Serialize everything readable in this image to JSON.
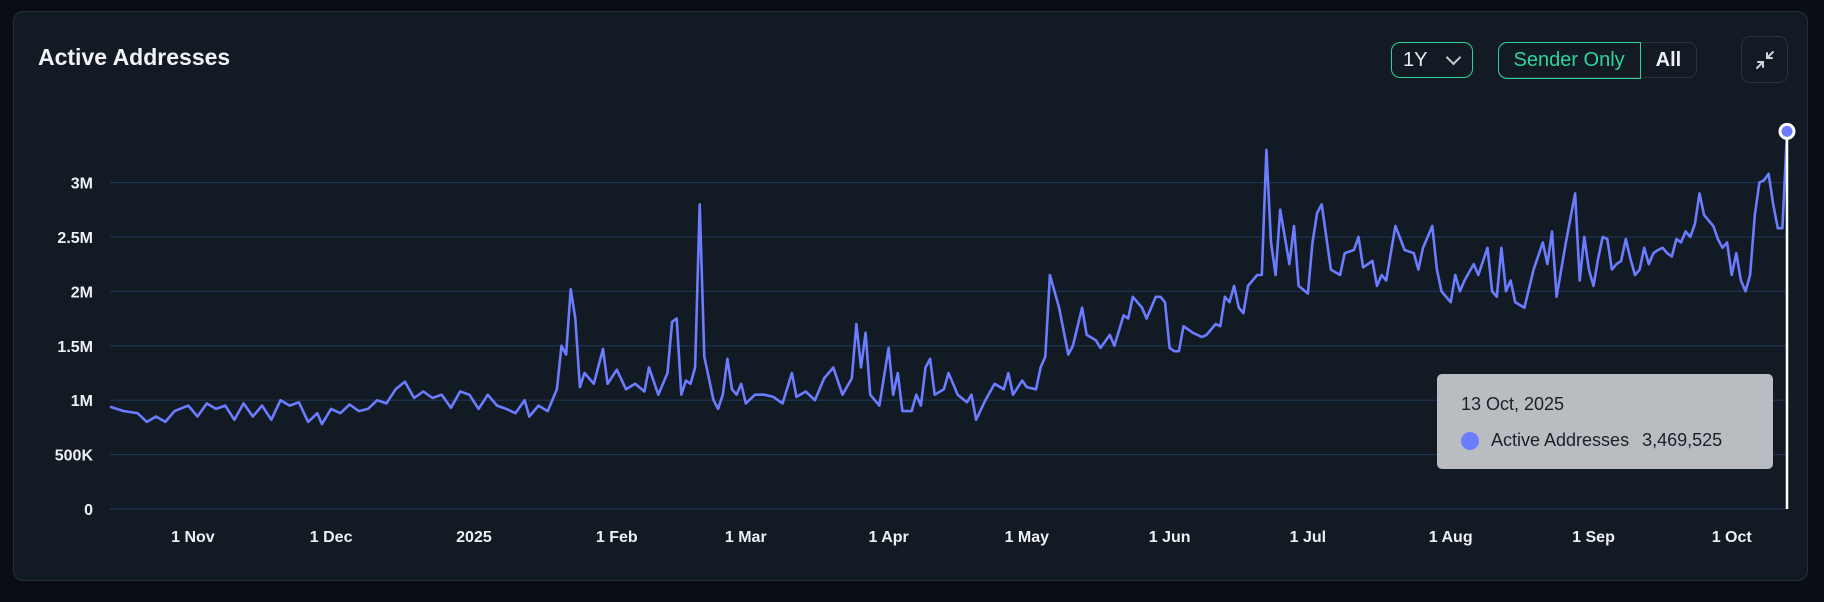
{
  "header": {
    "title": "Active Addresses",
    "range_label": "1Y",
    "toggle": {
      "active": "Sender Only",
      "inactive": "All"
    },
    "collapse_icon": "compress-icon"
  },
  "colors": {
    "line": "#6b7cff",
    "accent": "#2fd49a",
    "grid": "#1d3550",
    "card": "#121a24"
  },
  "tooltip": {
    "date": "13 Oct, 2025",
    "series": "Active Addresses",
    "value": "3,469,525"
  },
  "chart_data": {
    "type": "line",
    "title": "",
    "xlabel": "",
    "ylabel": "",
    "grid": true,
    "legend": "none",
    "yticks": [
      "0",
      "500K",
      "1M",
      "1.5M",
      "2M",
      "2.5M",
      "3M"
    ],
    "ytick_values": [
      0,
      500000,
      1000000,
      1500000,
      2000000,
      2500000,
      3000000
    ],
    "xticks": [
      "1 Nov",
      "1 Dec",
      "2025",
      "1 Feb",
      "1 Mar",
      "1 Apr",
      "1 May",
      "1 Jun",
      "1 Jul",
      "1 Aug",
      "1 Sep",
      "1 Oct"
    ],
    "xtick_dates": [
      "2024-11-01",
      "2024-12-01",
      "2025-01-01",
      "2025-02-01",
      "2025-03-01",
      "2025-04-01",
      "2025-05-01",
      "2025-06-01",
      "2025-07-01",
      "2025-08-01",
      "2025-09-01",
      "2025-10-01"
    ],
    "xlim": [
      "2024-10-14",
      "2025-10-13"
    ],
    "ylim": [
      0,
      3500000
    ],
    "series": [
      {
        "name": "Active Addresses",
        "points": [
          [
            "2024-10-14",
            940000
          ],
          [
            "2024-10-17",
            900000
          ],
          [
            "2024-10-20",
            880000
          ],
          [
            "2024-10-22",
            800000
          ],
          [
            "2024-10-24",
            850000
          ],
          [
            "2024-10-26",
            800000
          ],
          [
            "2024-10-28",
            900000
          ],
          [
            "2024-10-31",
            950000
          ],
          [
            "2024-11-02",
            850000
          ],
          [
            "2024-11-04",
            970000
          ],
          [
            "2024-11-06",
            920000
          ],
          [
            "2024-11-08",
            950000
          ],
          [
            "2024-11-10",
            820000
          ],
          [
            "2024-11-12",
            970000
          ],
          [
            "2024-11-14",
            850000
          ],
          [
            "2024-11-16",
            950000
          ],
          [
            "2024-11-18",
            820000
          ],
          [
            "2024-11-20",
            1000000
          ],
          [
            "2024-11-22",
            950000
          ],
          [
            "2024-11-24",
            980000
          ],
          [
            "2024-11-26",
            800000
          ],
          [
            "2024-11-28",
            880000
          ],
          [
            "2024-11-29",
            780000
          ],
          [
            "2024-12-01",
            920000
          ],
          [
            "2024-12-03",
            880000
          ],
          [
            "2024-12-05",
            960000
          ],
          [
            "2024-12-07",
            900000
          ],
          [
            "2024-12-09",
            920000
          ],
          [
            "2024-12-11",
            1000000
          ],
          [
            "2024-12-13",
            970000
          ],
          [
            "2024-12-15",
            1100000
          ],
          [
            "2024-12-17",
            1170000
          ],
          [
            "2024-12-19",
            1020000
          ],
          [
            "2024-12-21",
            1080000
          ],
          [
            "2024-12-23",
            1020000
          ],
          [
            "2024-12-25",
            1050000
          ],
          [
            "2024-12-27",
            930000
          ],
          [
            "2024-12-29",
            1080000
          ],
          [
            "2024-12-31",
            1050000
          ],
          [
            "2025-01-02",
            920000
          ],
          [
            "2025-01-04",
            1050000
          ],
          [
            "2025-01-06",
            950000
          ],
          [
            "2025-01-08",
            920000
          ],
          [
            "2025-01-10",
            880000
          ],
          [
            "2025-01-12",
            1000000
          ],
          [
            "2025-01-13",
            850000
          ],
          [
            "2025-01-15",
            950000
          ],
          [
            "2025-01-17",
            900000
          ],
          [
            "2025-01-19",
            1100000
          ],
          [
            "2025-01-20",
            1500000
          ],
          [
            "2025-01-21",
            1420000
          ],
          [
            "2025-01-22",
            2020000
          ],
          [
            "2025-01-23",
            1750000
          ],
          [
            "2025-01-24",
            1120000
          ],
          [
            "2025-01-25",
            1250000
          ],
          [
            "2025-01-27",
            1150000
          ],
          [
            "2025-01-29",
            1470000
          ],
          [
            "2025-01-30",
            1150000
          ],
          [
            "2025-02-01",
            1280000
          ],
          [
            "2025-02-03",
            1100000
          ],
          [
            "2025-02-05",
            1150000
          ],
          [
            "2025-02-07",
            1080000
          ],
          [
            "2025-02-08",
            1300000
          ],
          [
            "2025-02-10",
            1050000
          ],
          [
            "2025-02-12",
            1250000
          ],
          [
            "2025-02-13",
            1720000
          ],
          [
            "2025-02-14",
            1750000
          ],
          [
            "2025-02-15",
            1050000
          ],
          [
            "2025-02-16",
            1180000
          ],
          [
            "2025-02-17",
            1150000
          ],
          [
            "2025-02-18",
            1300000
          ],
          [
            "2025-02-19",
            2800000
          ],
          [
            "2025-02-20",
            1400000
          ],
          [
            "2025-02-22",
            1000000
          ],
          [
            "2025-02-23",
            920000
          ],
          [
            "2025-02-24",
            1050000
          ],
          [
            "2025-02-25",
            1380000
          ],
          [
            "2025-02-26",
            1100000
          ],
          [
            "2025-02-27",
            1050000
          ],
          [
            "2025-02-28",
            1150000
          ],
          [
            "2025-03-01",
            970000
          ],
          [
            "2025-03-03",
            1050000
          ],
          [
            "2025-03-05",
            1050000
          ],
          [
            "2025-03-07",
            1030000
          ],
          [
            "2025-03-09",
            970000
          ],
          [
            "2025-03-11",
            1250000
          ],
          [
            "2025-03-12",
            1030000
          ],
          [
            "2025-03-14",
            1080000
          ],
          [
            "2025-03-16",
            1000000
          ],
          [
            "2025-03-18",
            1200000
          ],
          [
            "2025-03-20",
            1300000
          ],
          [
            "2025-03-22",
            1050000
          ],
          [
            "2025-03-24",
            1200000
          ],
          [
            "2025-03-25",
            1700000
          ],
          [
            "2025-03-26",
            1300000
          ],
          [
            "2025-03-27",
            1620000
          ],
          [
            "2025-03-28",
            1050000
          ],
          [
            "2025-03-30",
            950000
          ],
          [
            "2025-04-01",
            1480000
          ],
          [
            "2025-04-02",
            1050000
          ],
          [
            "2025-04-03",
            1250000
          ],
          [
            "2025-04-04",
            900000
          ],
          [
            "2025-04-06",
            900000
          ],
          [
            "2025-04-07",
            1050000
          ],
          [
            "2025-04-08",
            950000
          ],
          [
            "2025-04-09",
            1300000
          ],
          [
            "2025-04-10",
            1380000
          ],
          [
            "2025-04-11",
            1050000
          ],
          [
            "2025-04-13",
            1100000
          ],
          [
            "2025-04-14",
            1250000
          ],
          [
            "2025-04-16",
            1050000
          ],
          [
            "2025-04-18",
            980000
          ],
          [
            "2025-04-19",
            1050000
          ],
          [
            "2025-04-20",
            820000
          ],
          [
            "2025-04-22",
            1000000
          ],
          [
            "2025-04-24",
            1150000
          ],
          [
            "2025-04-26",
            1100000
          ],
          [
            "2025-04-27",
            1250000
          ],
          [
            "2025-04-28",
            1050000
          ],
          [
            "2025-04-30",
            1180000
          ],
          [
            "2025-05-01",
            1120000
          ],
          [
            "2025-05-03",
            1100000
          ],
          [
            "2025-05-04",
            1300000
          ],
          [
            "2025-05-05",
            1400000
          ],
          [
            "2025-05-06",
            2150000
          ],
          [
            "2025-05-08",
            1850000
          ],
          [
            "2025-05-10",
            1420000
          ],
          [
            "2025-05-11",
            1500000
          ],
          [
            "2025-05-13",
            1850000
          ],
          [
            "2025-05-14",
            1600000
          ],
          [
            "2025-05-16",
            1550000
          ],
          [
            "2025-05-17",
            1480000
          ],
          [
            "2025-05-19",
            1600000
          ],
          [
            "2025-05-20",
            1500000
          ],
          [
            "2025-05-22",
            1780000
          ],
          [
            "2025-05-23",
            1750000
          ],
          [
            "2025-05-24",
            1950000
          ],
          [
            "2025-05-26",
            1850000
          ],
          [
            "2025-05-27",
            1750000
          ],
          [
            "2025-05-29",
            1950000
          ],
          [
            "2025-05-30",
            1950000
          ],
          [
            "2025-05-31",
            1900000
          ],
          [
            "2025-06-01",
            1480000
          ],
          [
            "2025-06-02",
            1450000
          ],
          [
            "2025-06-03",
            1450000
          ],
          [
            "2025-06-04",
            1680000
          ],
          [
            "2025-06-06",
            1620000
          ],
          [
            "2025-06-08",
            1580000
          ],
          [
            "2025-06-09",
            1600000
          ],
          [
            "2025-06-11",
            1700000
          ],
          [
            "2025-06-12",
            1680000
          ],
          [
            "2025-06-13",
            1950000
          ],
          [
            "2025-06-14",
            1900000
          ],
          [
            "2025-06-15",
            2050000
          ],
          [
            "2025-06-16",
            1850000
          ],
          [
            "2025-06-17",
            1800000
          ],
          [
            "2025-06-18",
            2050000
          ],
          [
            "2025-06-20",
            2150000
          ],
          [
            "2025-06-21",
            2150000
          ],
          [
            "2025-06-22",
            3300000
          ],
          [
            "2025-06-23",
            2450000
          ],
          [
            "2025-06-24",
            2150000
          ],
          [
            "2025-06-25",
            2750000
          ],
          [
            "2025-06-27",
            2250000
          ],
          [
            "2025-06-28",
            2600000
          ],
          [
            "2025-06-29",
            2050000
          ],
          [
            "2025-07-01",
            1980000
          ],
          [
            "2025-07-02",
            2450000
          ],
          [
            "2025-07-03",
            2720000
          ],
          [
            "2025-07-04",
            2800000
          ],
          [
            "2025-07-06",
            2200000
          ],
          [
            "2025-07-08",
            2150000
          ],
          [
            "2025-07-09",
            2350000
          ],
          [
            "2025-07-11",
            2380000
          ],
          [
            "2025-07-12",
            2500000
          ],
          [
            "2025-07-13",
            2220000
          ],
          [
            "2025-07-15",
            2280000
          ],
          [
            "2025-07-16",
            2050000
          ],
          [
            "2025-07-17",
            2150000
          ],
          [
            "2025-07-18",
            2100000
          ],
          [
            "2025-07-20",
            2600000
          ],
          [
            "2025-07-22",
            2380000
          ],
          [
            "2025-07-24",
            2350000
          ],
          [
            "2025-07-25",
            2200000
          ],
          [
            "2025-07-26",
            2400000
          ],
          [
            "2025-07-28",
            2600000
          ],
          [
            "2025-07-29",
            2200000
          ],
          [
            "2025-07-30",
            2000000
          ],
          [
            "2025-08-01",
            1900000
          ],
          [
            "2025-08-02",
            2150000
          ],
          [
            "2025-08-03",
            2000000
          ],
          [
            "2025-08-04",
            2100000
          ],
          [
            "2025-08-06",
            2250000
          ],
          [
            "2025-08-07",
            2150000
          ],
          [
            "2025-08-09",
            2400000
          ],
          [
            "2025-08-10",
            2000000
          ],
          [
            "2025-08-11",
            1950000
          ],
          [
            "2025-08-12",
            2400000
          ],
          [
            "2025-08-13",
            2000000
          ],
          [
            "2025-08-14",
            2100000
          ],
          [
            "2025-08-15",
            1900000
          ],
          [
            "2025-08-17",
            1850000
          ],
          [
            "2025-08-19",
            2200000
          ],
          [
            "2025-08-21",
            2450000
          ],
          [
            "2025-08-22",
            2250000
          ],
          [
            "2025-08-23",
            2550000
          ],
          [
            "2025-08-24",
            1950000
          ],
          [
            "2025-08-26",
            2450000
          ],
          [
            "2025-08-28",
            2900000
          ],
          [
            "2025-08-29",
            2100000
          ],
          [
            "2025-08-30",
            2500000
          ],
          [
            "2025-08-31",
            2200000
          ],
          [
            "2025-09-01",
            2050000
          ],
          [
            "2025-09-02",
            2300000
          ],
          [
            "2025-09-03",
            2500000
          ],
          [
            "2025-09-04",
            2480000
          ],
          [
            "2025-09-05",
            2200000
          ],
          [
            "2025-09-06",
            2250000
          ],
          [
            "2025-09-07",
            2280000
          ],
          [
            "2025-09-08",
            2480000
          ],
          [
            "2025-09-09",
            2300000
          ],
          [
            "2025-09-10",
            2150000
          ],
          [
            "2025-09-11",
            2200000
          ],
          [
            "2025-09-12",
            2400000
          ],
          [
            "2025-09-13",
            2250000
          ],
          [
            "2025-09-14",
            2350000
          ],
          [
            "2025-09-15",
            2380000
          ],
          [
            "2025-09-16",
            2400000
          ],
          [
            "2025-09-17",
            2350000
          ],
          [
            "2025-09-18",
            2320000
          ],
          [
            "2025-09-19",
            2480000
          ],
          [
            "2025-09-20",
            2450000
          ],
          [
            "2025-09-21",
            2550000
          ],
          [
            "2025-09-22",
            2500000
          ],
          [
            "2025-09-23",
            2620000
          ],
          [
            "2025-09-24",
            2900000
          ],
          [
            "2025-09-25",
            2700000
          ],
          [
            "2025-09-26",
            2650000
          ],
          [
            "2025-09-27",
            2600000
          ],
          [
            "2025-09-28",
            2480000
          ],
          [
            "2025-09-29",
            2400000
          ],
          [
            "2025-09-30",
            2450000
          ],
          [
            "2025-10-01",
            2150000
          ],
          [
            "2025-10-02",
            2350000
          ],
          [
            "2025-10-03",
            2100000
          ],
          [
            "2025-10-04",
            2000000
          ],
          [
            "2025-10-05",
            2150000
          ],
          [
            "2025-10-06",
            2700000
          ],
          [
            "2025-10-07",
            3000000
          ],
          [
            "2025-10-08",
            3020000
          ],
          [
            "2025-10-09",
            3080000
          ],
          [
            "2025-10-10",
            2800000
          ],
          [
            "2025-10-11",
            2580000
          ],
          [
            "2025-10-12",
            2580000
          ],
          [
            "2025-10-13",
            3469525
          ]
        ]
      }
    ]
  }
}
